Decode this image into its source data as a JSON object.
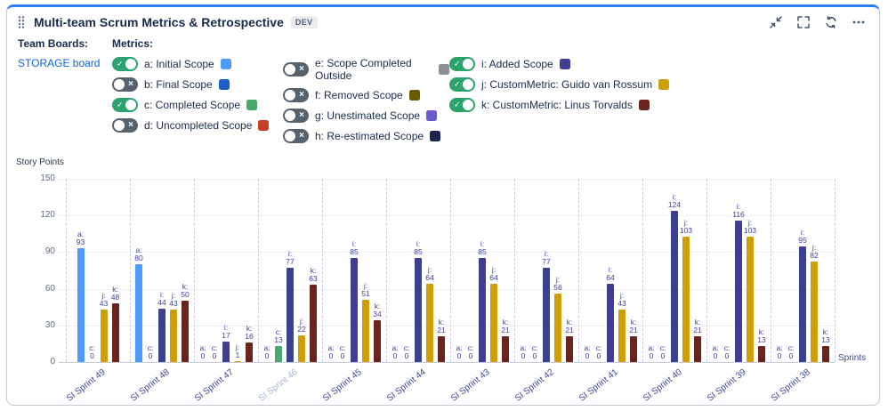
{
  "header": {
    "title": "Multi-team Scrum Metrics & Retrospective",
    "badge": "DEV",
    "icons": [
      "drag-handle-icon",
      "collapse-icon",
      "fullscreen-icon",
      "refresh-icon",
      "more-icon"
    ]
  },
  "team_boards": {
    "label": "Team Boards:",
    "board_link": "STORAGE board"
  },
  "metrics": {
    "label": "Metrics:",
    "columns": [
      [
        {
          "label": "a: Initial Scope",
          "on": true,
          "color": "#4D9BFF"
        },
        {
          "label": "b: Final Scope",
          "on": false,
          "color": "#1D5FC9"
        },
        {
          "label": "c: Completed Scope",
          "on": true,
          "color": "#47A96A"
        },
        {
          "label": "d: Uncompleted Scope",
          "on": false,
          "color": "#C43E24"
        }
      ],
      [
        {
          "label": "e: Scope Completed Outside",
          "on": false,
          "color": "#8A8F98"
        },
        {
          "label": "f: Removed Scope",
          "on": false,
          "color": "#6C5A00"
        },
        {
          "label": "g: Unestimated Scope",
          "on": false,
          "color": "#6A5BCB"
        },
        {
          "label": "h: Re-estimated Scope",
          "on": false,
          "color": "#1D2452"
        }
      ],
      [
        {
          "label": "i: Added Scope",
          "on": true,
          "color": "#3D3F92"
        },
        {
          "label": "j: CustomMetric: Guido van Rossum",
          "on": true,
          "color": "#CE9D08"
        },
        {
          "label": "k: CustomMetric: Linus Torvalds",
          "on": true,
          "color": "#6A241D"
        }
      ]
    ]
  },
  "chart_data": {
    "type": "bar",
    "title": "",
    "ylabel": "Story Points",
    "xlabel": "Sprints",
    "ylim": [
      0,
      150
    ],
    "yticks": [
      0,
      30,
      60,
      90,
      120,
      150
    ],
    "grid": true,
    "legend_position": "top-toggles",
    "categories": [
      "SI Sprint 49",
      "SI Sprint 48",
      "SI Sprint 47",
      "SI Sprint 46",
      "SI Sprint 45",
      "SI Sprint 44",
      "SI Sprint 43",
      "SI Sprint 42",
      "SI Sprint 41",
      "SI Sprint 40",
      "SI Sprint 39",
      "SI Sprint 38"
    ],
    "current_category": "SI Sprint 46",
    "series": [
      {
        "name": "a",
        "label": "Initial Scope",
        "color": "#4D9BFF",
        "values": [
          93,
          80,
          0,
          0,
          0,
          0,
          0,
          0,
          0,
          0,
          0,
          0
        ]
      },
      {
        "name": "c",
        "label": "Completed Scope",
        "color": "#47A96A",
        "values": [
          0,
          0,
          0,
          13,
          0,
          0,
          0,
          0,
          0,
          0,
          0,
          0
        ]
      },
      {
        "name": "i",
        "label": "Added Scope",
        "color": "#3D3F92",
        "values": [
          null,
          44,
          17,
          77,
          85,
          85,
          85,
          77,
          64,
          124,
          116,
          95
        ]
      },
      {
        "name": "j",
        "label": "CustomMetric: Guido van Rossum",
        "color": "#CE9D08",
        "values": [
          43,
          43,
          1,
          22,
          51,
          64,
          64,
          56,
          43,
          103,
          103,
          82
        ]
      },
      {
        "name": "k",
        "label": "CustomMetric: Linus Torvalds",
        "color": "#6A241D",
        "values": [
          48,
          50,
          16,
          63,
          34,
          21,
          21,
          21,
          21,
          21,
          13,
          13
        ]
      }
    ]
  }
}
